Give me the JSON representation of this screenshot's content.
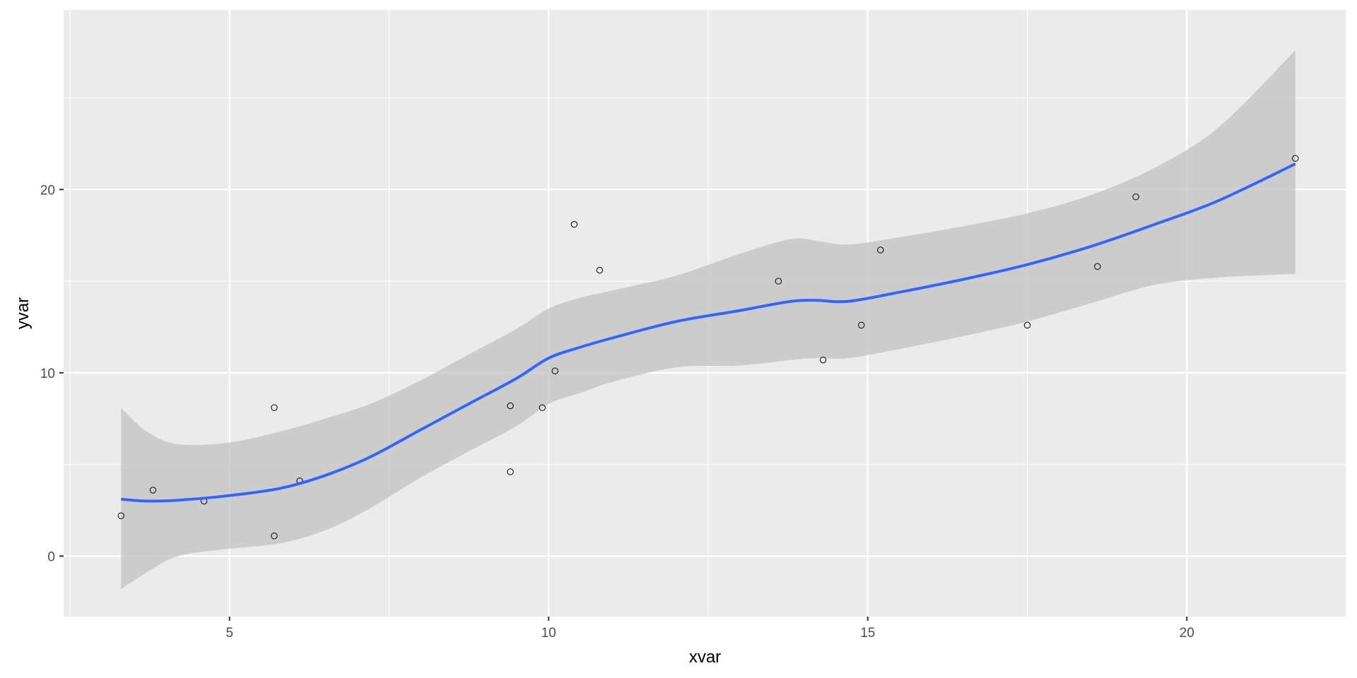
{
  "chart_data": {
    "type": "scatter",
    "title": "",
    "xlabel": "xvar",
    "ylabel": "yvar",
    "xlim": [
      2.4,
      22.5
    ],
    "ylim": [
      -3.3,
      29.8
    ],
    "x_ticks": [
      5,
      10,
      15,
      20
    ],
    "y_ticks": [
      0,
      10,
      20
    ],
    "grid": true,
    "legend": "none",
    "colors": {
      "panel": "#ebebeb",
      "grid": "#ffffff",
      "points_stroke": "#000000",
      "smooth_line": "#3366ff",
      "ribbon": "#c2c2c2"
    },
    "points": [
      {
        "x": 3.3,
        "y": 2.2
      },
      {
        "x": 3.8,
        "y": 3.6
      },
      {
        "x": 4.6,
        "y": 3.0
      },
      {
        "x": 5.7,
        "y": 8.1
      },
      {
        "x": 5.7,
        "y": 1.1
      },
      {
        "x": 6.1,
        "y": 4.1
      },
      {
        "x": 9.4,
        "y": 8.2
      },
      {
        "x": 9.4,
        "y": 4.6
      },
      {
        "x": 9.9,
        "y": 8.1
      },
      {
        "x": 10.1,
        "y": 10.1
      },
      {
        "x": 10.4,
        "y": 18.1
      },
      {
        "x": 10.8,
        "y": 15.6
      },
      {
        "x": 13.6,
        "y": 15.0
      },
      {
        "x": 14.3,
        "y": 10.7
      },
      {
        "x": 14.9,
        "y": 12.6
      },
      {
        "x": 15.2,
        "y": 16.7
      },
      {
        "x": 17.5,
        "y": 12.6
      },
      {
        "x": 18.6,
        "y": 15.8
      },
      {
        "x": 19.2,
        "y": 19.6
      },
      {
        "x": 21.7,
        "y": 21.7
      }
    ],
    "smooth": {
      "x": [
        3.3,
        3.7,
        4.2,
        5.0,
        5.8,
        6.5,
        7.2,
        8.0,
        8.8,
        9.5,
        10.0,
        10.5,
        11.0,
        12.0,
        13.0,
        13.8,
        14.2,
        14.7,
        15.5,
        16.5,
        17.5,
        18.5,
        19.5,
        20.5,
        21.7
      ],
      "y": [
        3.1,
        3.0,
        3.05,
        3.3,
        3.7,
        4.4,
        5.4,
        6.9,
        8.4,
        9.7,
        10.8,
        11.4,
        11.9,
        12.8,
        13.4,
        13.9,
        13.95,
        13.9,
        14.4,
        15.1,
        15.9,
        16.9,
        18.1,
        19.4,
        21.4
      ],
      "lower": [
        -1.8,
        -0.9,
        0.0,
        0.4,
        0.7,
        1.4,
        2.6,
        4.3,
        5.8,
        7.1,
        8.3,
        8.9,
        9.5,
        10.3,
        10.4,
        10.7,
        10.8,
        10.8,
        11.3,
        12.0,
        12.8,
        13.8,
        14.8,
        15.2,
        15.4
      ],
      "upper": [
        8.1,
        6.8,
        6.1,
        6.2,
        6.8,
        7.5,
        8.3,
        9.6,
        11.1,
        12.4,
        13.5,
        14.1,
        14.5,
        15.3,
        16.5,
        17.3,
        17.2,
        17.0,
        17.4,
        18.0,
        18.7,
        19.7,
        21.2,
        23.4,
        27.6
      ]
    }
  }
}
